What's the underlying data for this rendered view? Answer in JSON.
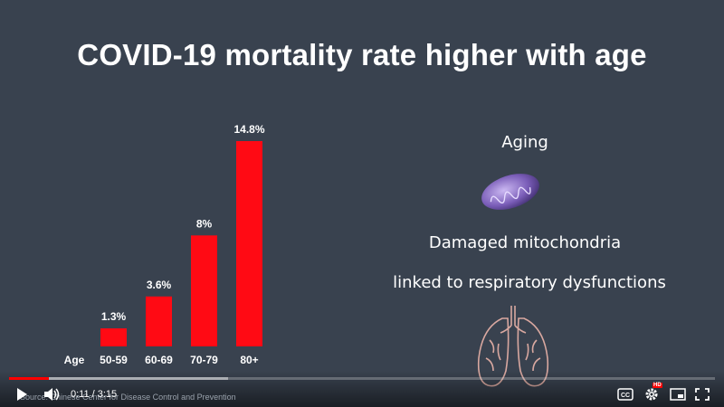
{
  "video": {
    "title": "COVID-19 mortality rate higher with age",
    "side_text": [
      "Aging",
      "Damaged mitochondria",
      "linked to respiratory dysfunctions"
    ],
    "source": "Source: Chinese Center for Disease Control and Prevention"
  },
  "chart_data": {
    "type": "bar",
    "categories": [
      "50-59",
      "60-69",
      "70-79",
      "80+"
    ],
    "values": [
      1.3,
      3.6,
      8,
      14.8
    ],
    "value_labels": [
      "1.3%",
      "3.6%",
      "8%",
      "14.8%"
    ],
    "xlabel": "Age",
    "ylim": [
      0,
      14.8
    ],
    "grid": false,
    "bar_color": "#ff0a14"
  },
  "player": {
    "time": "0:11 / 3:15",
    "progress_fraction": 0.056,
    "buffered_fraction": 0.31,
    "progress_color": "#ff0000",
    "hd_badge": "HD",
    "icons": [
      "play-icon",
      "volume-icon",
      "captions-icon",
      "settings-icon",
      "miniplayer-icon",
      "fullscreen-icon"
    ]
  }
}
